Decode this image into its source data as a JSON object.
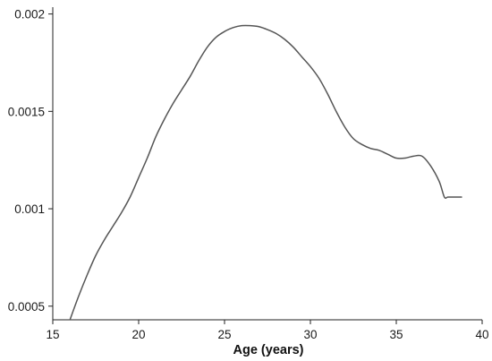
{
  "chart_data": {
    "type": "line",
    "title": "",
    "xlabel": "Age (years)",
    "ylabel": "",
    "xlim": [
      15,
      40
    ],
    "ylim": [
      0.00043,
      0.002035
    ],
    "x_ticks": [
      15,
      20,
      25,
      30,
      35,
      40
    ],
    "x_tick_labels": [
      "15",
      "20",
      "25",
      "30",
      "35",
      "40"
    ],
    "y_ticks": [
      0.0005,
      0.001,
      0.0015,
      0.002
    ],
    "y_tick_labels": [
      "0.0005",
      "0.001",
      "0.0015",
      "0.002"
    ],
    "grid": false,
    "legend": "none",
    "series": [
      {
        "color": "#555555",
        "x": [
          16.0,
          16.5,
          17.0,
          17.5,
          18.0,
          18.5,
          19.0,
          19.5,
          20.0,
          20.5,
          21.0,
          21.5,
          22.0,
          22.5,
          23.0,
          23.5,
          24.0,
          24.5,
          25.0,
          25.5,
          26.0,
          26.5,
          27.0,
          27.5,
          28.0,
          28.5,
          29.0,
          29.5,
          30.0,
          30.5,
          31.0,
          31.5,
          32.0,
          32.5,
          33.0,
          33.5,
          34.0,
          34.5,
          35.0,
          35.5,
          36.0,
          36.5,
          37.0,
          37.5,
          37.8,
          38.0,
          38.3,
          38.5,
          38.8
        ],
        "y": [
          0.00043,
          0.00055,
          0.00066,
          0.00076,
          0.00084,
          0.00091,
          0.00098,
          0.00106,
          0.00116,
          0.00126,
          0.00137,
          0.00146,
          0.00154,
          0.00161,
          0.00168,
          0.00176,
          0.00183,
          0.00188,
          0.00191,
          0.00193,
          0.00194,
          0.00194,
          0.001935,
          0.00192,
          0.0019,
          0.00187,
          0.00183,
          0.00178,
          0.00173,
          0.00167,
          0.00159,
          0.0015,
          0.00142,
          0.00136,
          0.00133,
          0.00131,
          0.0013,
          0.00128,
          0.00126,
          0.00126,
          0.00127,
          0.00127,
          0.00122,
          0.00114,
          0.00106,
          0.00106,
          0.00106,
          0.00106,
          0.00106
        ]
      }
    ]
  }
}
